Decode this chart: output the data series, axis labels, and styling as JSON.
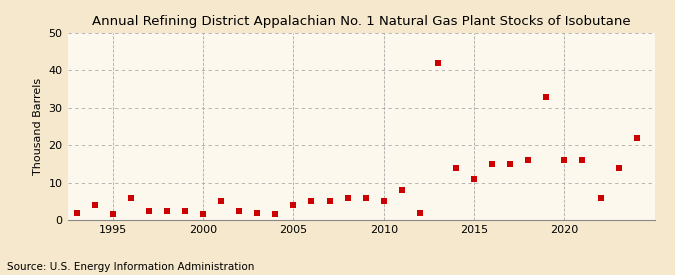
{
  "title": "Annual Refining District Appalachian No. 1 Natural Gas Plant Stocks of Isobutane",
  "ylabel": "Thousand Barrels",
  "source": "Source: U.S. Energy Information Administration",
  "background_color": "#f5e8cc",
  "plot_background_color": "#fdf8ee",
  "marker_color": "#cc0000",
  "marker": "s",
  "marker_size": 16,
  "xlim": [
    1992.5,
    2025
  ],
  "ylim": [
    0,
    50
  ],
  "yticks": [
    0,
    10,
    20,
    30,
    40,
    50
  ],
  "xticks": [
    1995,
    2000,
    2005,
    2010,
    2015,
    2020
  ],
  "years": [
    1993,
    1994,
    1995,
    1996,
    1997,
    1998,
    1999,
    2000,
    2001,
    2002,
    2003,
    2004,
    2005,
    2006,
    2007,
    2008,
    2009,
    2010,
    2011,
    2012,
    2013,
    2014,
    2015,
    2016,
    2017,
    2018,
    2019,
    2020,
    2021,
    2022,
    2023,
    2024
  ],
  "values": [
    2.0,
    4.0,
    1.5,
    6.0,
    2.5,
    2.5,
    2.5,
    1.5,
    5.0,
    2.5,
    2.0,
    1.5,
    4.0,
    5.0,
    5.0,
    6.0,
    6.0,
    5.0,
    8.0,
    2.0,
    42.0,
    14.0,
    11.0,
    15.0,
    15.0,
    16.0,
    33.0,
    16.0,
    16.0,
    6.0,
    14.0,
    22.0
  ],
  "title_fontsize": 9.5,
  "tick_fontsize": 8,
  "ylabel_fontsize": 8,
  "source_fontsize": 7.5
}
